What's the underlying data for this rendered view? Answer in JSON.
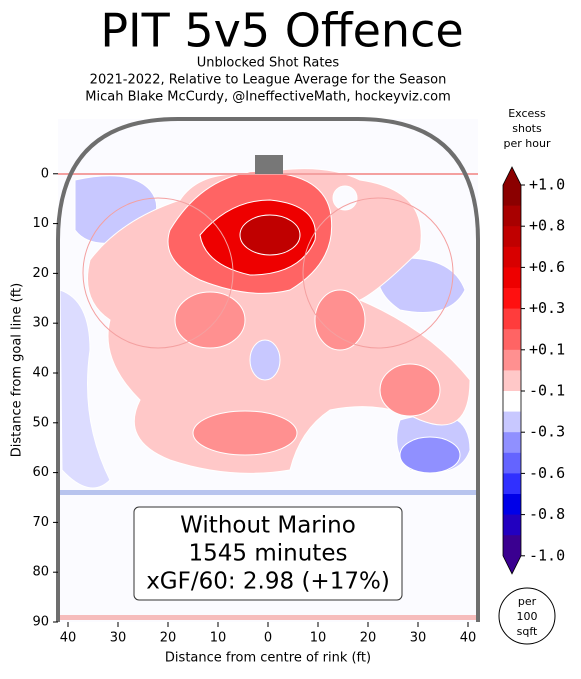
{
  "chart_data": {
    "type": "contour",
    "title": "PIT 5v5 Offence",
    "subtitle": [
      "Unblocked Shot Rates",
      "2021-2022, Relative to League Average for the Season",
      "Micah Blake McCurdy, @IneffectiveMath, hockeyviz.com"
    ],
    "xlabel": "Distance from centre of rink (ft)",
    "ylabel": "Distance from goal line (ft)",
    "xlim": [
      -42,
      42
    ],
    "ylim": [
      -11,
      90
    ],
    "xticks": [
      {
        "value": -40,
        "label": "40"
      },
      {
        "value": -30,
        "label": "30"
      },
      {
        "value": -20,
        "label": "20"
      },
      {
        "value": -10,
        "label": "10"
      },
      0,
      10,
      20,
      30,
      40
    ],
    "yticks": [
      0,
      10,
      20,
      30,
      40,
      50,
      60,
      70,
      80,
      90
    ],
    "annotation": [
      "Without Marino",
      "1545 minutes",
      "xGF/60: 2.98 (+17%)"
    ],
    "colorbar": {
      "title": [
        "Excess",
        "shots",
        "per hour"
      ],
      "ticks": [
        {
          "value": 1.0,
          "label": "+1.0"
        },
        {
          "value": 0.8,
          "label": "+0.8"
        },
        {
          "value": 0.6,
          "label": "+0.6"
        },
        {
          "value": 0.3,
          "label": "+0.3"
        },
        {
          "value": 0.1,
          "label": "+0.1"
        },
        {
          "value": -0.1,
          "label": "-0.1"
        },
        {
          "value": -0.3,
          "label": "-0.3"
        },
        {
          "value": -0.6,
          "label": "-0.6"
        },
        {
          "value": -0.8,
          "label": "-0.8"
        },
        {
          "value": -1.0,
          "label": "-1.0"
        }
      ],
      "colors": [
        "#8b0000",
        "#a80000",
        "#c00000",
        "#d80000",
        "#ee0000",
        "#ff1010",
        "#ff3c3c",
        "#ff6464",
        "#ff9090",
        "#ffc8c8",
        "#ffffff",
        "#c8c8ff",
        "#9090ff",
        "#6464ff",
        "#3030ff",
        "#0000e8",
        "#2200c0",
        "#3a0090"
      ],
      "unit": [
        "per",
        "100",
        "sqft"
      ]
    }
  }
}
